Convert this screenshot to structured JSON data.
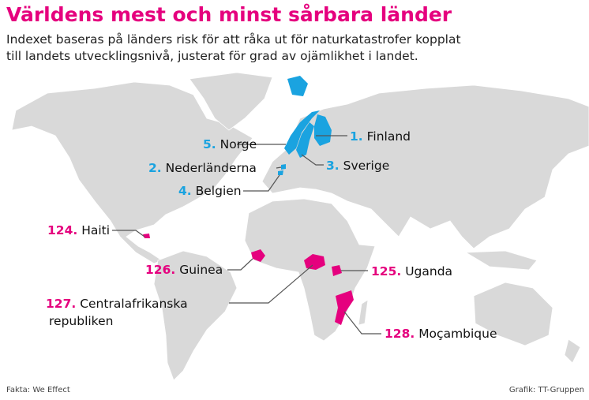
{
  "header": {
    "title": "Världens mest och minst sårbara länder",
    "subtitle": [
      "Indexet baseras på länders risk för att råka ut för naturkatastrofer kopplat",
      "till landets utvecklingsnivå, justerat för grad av ojämlikhet i landet."
    ]
  },
  "labels": [
    {
      "rank": "1.",
      "country": "Finland",
      "color": "#1aa3e0"
    },
    {
      "rank": "5.",
      "country": "Norge",
      "color": "#1aa3e0"
    },
    {
      "rank": "3.",
      "country": "Sverige",
      "color": "#1aa3e0"
    },
    {
      "rank": "2.",
      "country": "Nederländerna",
      "color": "#1aa3e0"
    },
    {
      "rank": "4.",
      "country": "Belgien",
      "color": "#1aa3e0"
    },
    {
      "rank": "124.",
      "country": "Haiti",
      "color": "#e5007e"
    },
    {
      "rank": "126.",
      "country": "Guinea",
      "color": "#e5007e"
    },
    {
      "rank": "125.",
      "country": "Uganda",
      "color": "#e5007e"
    },
    {
      "rank": "127.",
      "country": "Centralafrikanska",
      "country_line2": "republiken",
      "color": "#e5007e"
    },
    {
      "rank": "128.",
      "country": "Moçambique",
      "color": "#e5007e"
    }
  ],
  "footer": {
    "source": "Fakta: We Effect",
    "credit": "Grafik: TT-Gruppen"
  }
}
